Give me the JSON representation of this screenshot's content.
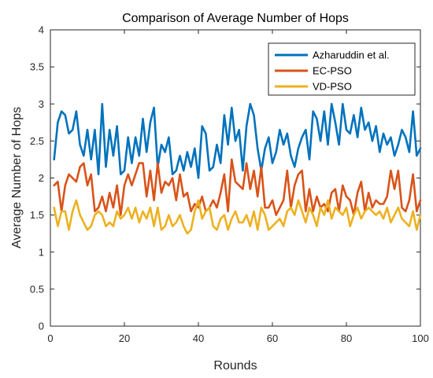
{
  "chart_data": {
    "type": "line",
    "title": "Comparison of Average Number of Hops",
    "xlabel": "Rounds",
    "ylabel": "Average Number of Hops",
    "xlim": [
      0,
      100
    ],
    "ylim": [
      0,
      4
    ],
    "xticks": [
      "0",
      "20",
      "40",
      "60",
      "80",
      "100"
    ],
    "yticks": [
      "0",
      "0.5",
      "1",
      "1.5",
      "2",
      "2.5",
      "3",
      "3.5",
      "4"
    ],
    "legend_position": "top-right",
    "grid": false,
    "x": [
      1,
      2,
      3,
      4,
      5,
      6,
      7,
      8,
      9,
      10,
      11,
      12,
      13,
      14,
      15,
      16,
      17,
      18,
      19,
      20,
      21,
      22,
      23,
      24,
      25,
      26,
      27,
      28,
      29,
      30,
      31,
      32,
      33,
      34,
      35,
      36,
      37,
      38,
      39,
      40,
      41,
      42,
      43,
      44,
      45,
      46,
      47,
      48,
      49,
      50,
      51,
      52,
      53,
      54,
      55,
      56,
      57,
      58,
      59,
      60,
      61,
      62,
      63,
      64,
      65,
      66,
      67,
      68,
      69,
      70,
      71,
      72,
      73,
      74,
      75,
      76,
      77,
      78,
      79,
      80,
      81,
      82,
      83,
      84,
      85,
      86,
      87,
      88,
      89,
      90,
      91,
      92,
      93,
      94,
      95,
      96,
      97,
      98,
      99,
      100
    ],
    "series": [
      {
        "name": "Azharuddin et al.",
        "color": "#0072BD",
        "values": [
          2.25,
          2.75,
          2.9,
          2.85,
          2.6,
          2.65,
          2.9,
          2.45,
          2.3,
          2.65,
          2.25,
          2.65,
          2.05,
          3.0,
          2.15,
          2.65,
          2.3,
          2.7,
          2.05,
          2.1,
          2.55,
          2.2,
          2.55,
          2.3,
          2.8,
          2.35,
          2.75,
          2.95,
          2.15,
          2.45,
          2.35,
          2.55,
          2.05,
          2.1,
          2.3,
          2.1,
          2.35,
          2.15,
          2.4,
          2.0,
          2.7,
          2.6,
          2.1,
          2.15,
          2.45,
          2.2,
          2.85,
          2.45,
          2.95,
          2.5,
          2.65,
          2.1,
          2.7,
          3.0,
          2.85,
          2.4,
          2.1,
          2.4,
          2.55,
          2.2,
          2.35,
          2.65,
          2.45,
          2.6,
          2.3,
          2.15,
          2.4,
          2.55,
          2.65,
          2.25,
          2.9,
          2.8,
          2.5,
          2.9,
          2.45,
          3.0,
          2.75,
          2.45,
          3.0,
          2.65,
          2.6,
          2.85,
          2.55,
          2.95,
          2.65,
          2.75,
          2.5,
          2.7,
          2.35,
          2.6,
          2.45,
          2.55,
          2.3,
          2.45,
          2.65,
          2.55,
          2.35,
          2.9,
          2.3,
          2.4
        ]
      },
      {
        "name": "EC-PSO",
        "color": "#D95319",
        "values": [
          1.9,
          1.95,
          1.55,
          1.9,
          2.05,
          2.0,
          1.95,
          2.15,
          2.2,
          1.9,
          2.05,
          1.55,
          1.6,
          1.75,
          1.55,
          1.8,
          1.6,
          1.9,
          1.5,
          1.9,
          2.05,
          1.9,
          2.05,
          2.2,
          2.2,
          1.75,
          2.1,
          1.7,
          2.2,
          1.8,
          1.95,
          1.9,
          2.0,
          1.7,
          2.05,
          1.75,
          1.8,
          1.55,
          1.65,
          1.6,
          1.75,
          1.55,
          1.6,
          1.7,
          1.6,
          1.8,
          2.05,
          1.55,
          2.25,
          1.95,
          1.9,
          1.85,
          2.2,
          1.85,
          2.1,
          1.75,
          2.15,
          1.6,
          1.6,
          1.7,
          1.5,
          1.6,
          1.7,
          2.1,
          1.6,
          1.9,
          2.05,
          2.1,
          1.55,
          1.85,
          1.55,
          1.75,
          1.6,
          1.65,
          1.55,
          1.8,
          1.85,
          1.55,
          1.9,
          1.75,
          1.7,
          1.5,
          1.8,
          1.95,
          1.55,
          1.8,
          1.6,
          1.7,
          1.65,
          1.65,
          1.75,
          2.1,
          1.85,
          2.1,
          1.6,
          1.55,
          1.7,
          2.05,
          1.55,
          1.7
        ]
      },
      {
        "name": "VD-PSO",
        "color": "#EDB120",
        "values": [
          1.6,
          1.35,
          1.55,
          1.55,
          1.3,
          1.55,
          1.7,
          1.5,
          1.4,
          1.3,
          1.35,
          1.5,
          1.55,
          1.5,
          1.35,
          1.4,
          1.35,
          1.55,
          1.45,
          1.5,
          1.6,
          1.45,
          1.6,
          1.4,
          1.55,
          1.45,
          1.6,
          1.35,
          1.6,
          1.3,
          1.35,
          1.5,
          1.35,
          1.4,
          1.5,
          1.35,
          1.25,
          1.3,
          1.55,
          1.7,
          1.45,
          1.55,
          1.6,
          1.35,
          1.3,
          1.45,
          1.5,
          1.3,
          1.45,
          1.55,
          1.4,
          1.4,
          1.5,
          1.35,
          1.55,
          1.3,
          1.6,
          1.5,
          1.3,
          1.35,
          1.4,
          1.45,
          1.35,
          1.55,
          1.6,
          1.5,
          1.7,
          1.55,
          1.4,
          1.6,
          1.5,
          1.35,
          1.6,
          1.5,
          1.7,
          1.45,
          1.6,
          1.55,
          1.5,
          1.6,
          1.35,
          1.5,
          1.6,
          1.45,
          1.55,
          1.6,
          1.55,
          1.5,
          1.55,
          1.45,
          1.6,
          1.4,
          1.5,
          1.6,
          1.45,
          1.4,
          1.35,
          1.55,
          1.3,
          1.5
        ]
      }
    ]
  }
}
